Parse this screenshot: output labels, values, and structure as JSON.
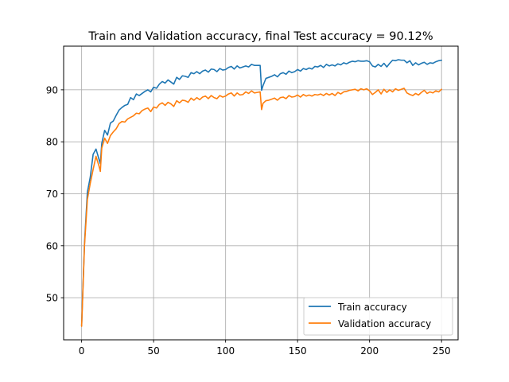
{
  "chart_data": {
    "type": "line",
    "title": "Train and Validation accuracy, final Test accuracy = 90.12%",
    "xlabel": "",
    "ylabel": "",
    "xlim": [
      -12.5,
      261.5
    ],
    "ylim": [
      41.9,
      98.4
    ],
    "x_ticks": [
      0,
      50,
      100,
      150,
      200,
      250
    ],
    "y_ticks": [
      50,
      60,
      70,
      80,
      90
    ],
    "grid": true,
    "legend": "lower-right",
    "colors": {
      "train": "#1f77b4",
      "validation": "#ff7f0e"
    },
    "x": [
      0,
      2,
      4,
      6,
      8,
      10,
      12,
      13,
      14,
      16,
      18,
      20,
      22,
      24,
      26,
      28,
      30,
      32,
      34,
      36,
      38,
      40,
      42,
      44,
      46,
      48,
      50,
      52,
      54,
      56,
      58,
      60,
      62,
      64,
      66,
      68,
      70,
      72,
      74,
      76,
      78,
      80,
      82,
      84,
      86,
      88,
      90,
      92,
      94,
      96,
      98,
      100,
      102,
      104,
      106,
      108,
      110,
      112,
      114,
      116,
      118,
      120,
      122,
      124,
      125,
      126,
      128,
      130,
      132,
      134,
      136,
      138,
      140,
      142,
      144,
      146,
      148,
      150,
      152,
      154,
      156,
      158,
      160,
      162,
      164,
      166,
      168,
      170,
      172,
      174,
      176,
      178,
      180,
      182,
      184,
      186,
      188,
      190,
      192,
      194,
      196,
      198,
      200,
      202,
      204,
      206,
      208,
      210,
      212,
      214,
      216,
      218,
      220,
      222,
      224,
      226,
      228,
      230,
      232,
      234,
      236,
      238,
      240,
      242,
      244,
      246,
      248,
      250
    ],
    "series": [
      {
        "name": "Train accuracy",
        "values": [
          44.6,
          60.5,
          70.3,
          73.2,
          77.6,
          78.6,
          76.7,
          75.8,
          79.7,
          82.2,
          81.3,
          83.6,
          84.0,
          85.1,
          86.1,
          86.6,
          87.0,
          87.2,
          88.5,
          88.1,
          89.2,
          88.9,
          89.3,
          89.7,
          90.0,
          89.6,
          90.5,
          90.3,
          91.1,
          91.6,
          91.3,
          91.9,
          91.5,
          91.1,
          92.4,
          92.0,
          92.7,
          92.6,
          92.4,
          93.3,
          93.1,
          93.5,
          93.1,
          93.6,
          93.8,
          93.4,
          94.0,
          93.9,
          93.5,
          94.1,
          93.8,
          93.9,
          94.3,
          94.5,
          94.0,
          94.6,
          94.2,
          94.4,
          94.6,
          94.4,
          94.9,
          94.7,
          94.7,
          94.7,
          89.9,
          90.8,
          92.2,
          92.4,
          92.6,
          92.9,
          92.5,
          93.1,
          93.3,
          93.0,
          93.6,
          93.3,
          93.5,
          93.9,
          93.6,
          94.1,
          93.9,
          94.2,
          94.0,
          94.5,
          94.4,
          94.7,
          94.3,
          94.9,
          94.6,
          94.8,
          94.6,
          95.0,
          94.8,
          95.2,
          95.0,
          95.3,
          95.5,
          95.4,
          95.6,
          95.5,
          95.5,
          95.6,
          95.4,
          94.6,
          94.4,
          94.9,
          94.5,
          95.1,
          94.4,
          95.1,
          95.7,
          95.6,
          95.8,
          95.7,
          95.7,
          95.2,
          95.6,
          94.7,
          95.2,
          94.8,
          95.1,
          95.3,
          94.9,
          95.2,
          95.1,
          95.4,
          95.6,
          95.7
        ]
      },
      {
        "name": "Validation accuracy",
        "values": [
          44.5,
          60.0,
          68.9,
          72.0,
          74.7,
          77.2,
          75.4,
          74.3,
          78.8,
          80.7,
          79.7,
          81.2,
          81.9,
          82.5,
          83.5,
          83.9,
          83.8,
          84.4,
          84.7,
          85.0,
          85.5,
          85.4,
          86.0,
          86.3,
          86.5,
          85.8,
          86.7,
          86.5,
          87.2,
          87.5,
          87.0,
          87.6,
          87.3,
          86.8,
          87.9,
          87.5,
          88.0,
          87.9,
          87.6,
          88.4,
          88.0,
          88.5,
          88.1,
          88.6,
          88.8,
          88.3,
          88.9,
          88.5,
          88.3,
          88.9,
          88.6,
          88.8,
          89.2,
          89.4,
          88.8,
          89.4,
          89.0,
          89.1,
          89.6,
          89.3,
          89.8,
          89.4,
          89.5,
          89.6,
          86.2,
          87.4,
          87.9,
          88.0,
          88.2,
          88.4,
          88.0,
          88.5,
          88.6,
          88.3,
          88.9,
          88.6,
          88.7,
          89.0,
          88.6,
          89.1,
          88.8,
          89.0,
          88.8,
          89.1,
          89.0,
          89.2,
          88.9,
          89.3,
          89.0,
          89.3,
          88.9,
          89.5,
          89.2,
          89.6,
          89.7,
          89.9,
          90.0,
          90.1,
          89.8,
          90.2,
          90.0,
          90.2,
          89.8,
          89.1,
          89.5,
          90.0,
          89.2,
          90.1,
          89.5,
          90.0,
          89.6,
          90.2,
          89.9,
          90.1,
          90.3,
          89.4,
          89.1,
          88.9,
          89.3,
          89.0,
          89.5,
          89.9,
          89.3,
          89.6,
          89.4,
          89.8,
          89.6,
          90.1
        ]
      }
    ]
  }
}
